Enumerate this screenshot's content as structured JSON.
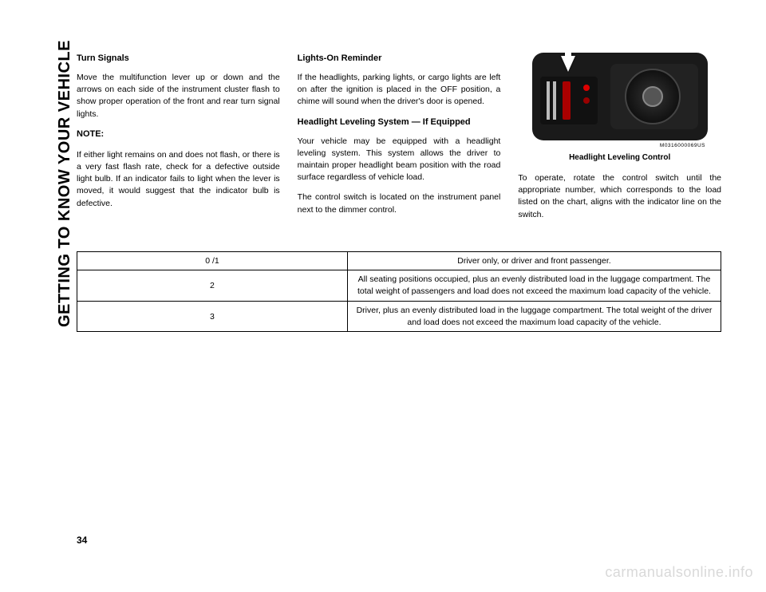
{
  "sidebar": {
    "label": "GETTING TO KNOW YOUR VEHICLE"
  },
  "col1": {
    "heading": "Turn Signals",
    "p1": "Move the multifunction lever up or down and the arrows on each side of the instrument cluster flash to show proper operation of the front and rear turn signal lights.",
    "note_label": "NOTE:",
    "note_body": "If either light remains on and does not flash, or there is a very fast flash rate, check for a defective outside light bulb. If an indicator fails to light when the lever is moved, it would suggest that the indicator bulb is defective."
  },
  "col2": {
    "heading1": "Lights-On Reminder",
    "p1": "If the headlights, parking lights, or cargo lights are left on after the ignition is placed in the OFF position, a chime will sound when the driver's door is opened.",
    "heading2": "Headlight Leveling System — If Equipped",
    "p2": "Your vehicle may be equipped with a headlight leveling system. This system allows the driver to maintain proper headlight beam position with the road surface regardless of vehicle load.",
    "p3": "The control switch is located on the instrument panel next to the dimmer control."
  },
  "col3": {
    "figure_code": "M0316000069US",
    "figure_caption": "Headlight Leveling Control",
    "p1": "To operate, rotate the control switch until the appropriate number, which corresponds to the load listed on the chart, aligns with the indicator line on the switch."
  },
  "table": {
    "rows": [
      {
        "left": "0 /1",
        "right": "Driver only, or driver and front passenger."
      },
      {
        "left": "2",
        "right": "All seating positions occupied, plus an evenly distributed load in the luggage compartment. The total weight of passengers and load does not exceed the maximum load capacity of the vehicle."
      },
      {
        "left": "3",
        "right": "Driver, plus an evenly distributed load in the luggage compartment. The total weight of the driver and load does not exceed the maximum load capacity of the vehicle."
      }
    ]
  },
  "page_number": "34",
  "watermark": "carmanualsonline.info"
}
